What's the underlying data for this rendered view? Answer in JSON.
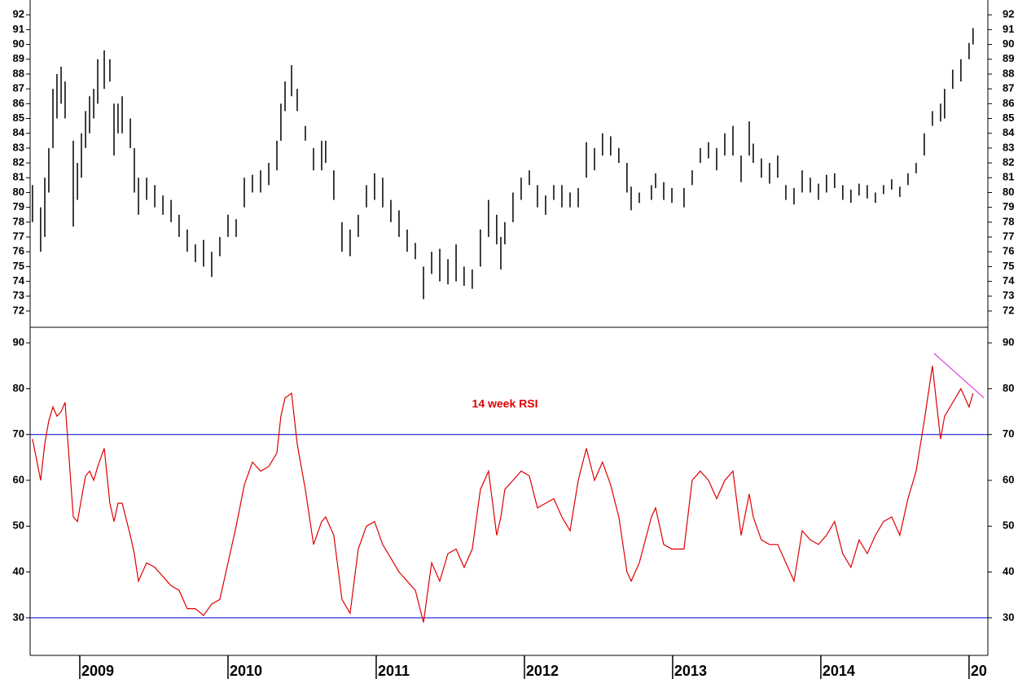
{
  "chart_data": [
    {
      "type": "hilo",
      "color": "#000000",
      "x": [
        2008.681,
        2008.736,
        2008.764,
        2008.791,
        2008.819,
        2008.846,
        2008.874,
        2008.901,
        2008.956,
        2008.984,
        2009.011,
        2009.039,
        2009.066,
        2009.094,
        2009.121,
        2009.165,
        2009.203,
        2009.231,
        2009.258,
        2009.286,
        2009.341,
        2009.368,
        2009.396,
        2009.451,
        2009.506,
        2009.561,
        2009.616,
        2009.67,
        2009.725,
        2009.78,
        2009.835,
        2009.89,
        2009.945,
        2010.0,
        2010.055,
        2010.11,
        2010.165,
        2010.22,
        2010.275,
        2010.33,
        2010.357,
        2010.385,
        2010.429,
        2010.467,
        2010.522,
        2010.577,
        2010.632,
        2010.659,
        2010.714,
        2010.769,
        2010.824,
        2010.879,
        2010.934,
        2010.989,
        2011.044,
        2011.099,
        2011.154,
        2011.209,
        2011.264,
        2011.319,
        2011.374,
        2011.429,
        2011.484,
        2011.539,
        2011.593,
        2011.648,
        2011.703,
        2011.758,
        2011.813,
        2011.841,
        2011.868,
        2011.923,
        2011.978,
        2012.033,
        2012.088,
        2012.143,
        2012.198,
        2012.253,
        2012.308,
        2012.363,
        2012.418,
        2012.473,
        2012.527,
        2012.582,
        2012.637,
        2012.692,
        2012.72,
        2012.775,
        2012.857,
        2012.885,
        2012.94,
        2012.995,
        2013.077,
        2013.132,
        2013.187,
        2013.242,
        2013.297,
        2013.352,
        2013.407,
        2013.462,
        2013.517,
        2013.544,
        2013.599,
        2013.654,
        2013.709,
        2013.764,
        2013.819,
        2013.874,
        2013.929,
        2013.984,
        2014.038,
        2014.093,
        2014.148,
        2014.203,
        2014.258,
        2014.313,
        2014.368,
        2014.423,
        2014.478,
        2014.533,
        2014.588,
        2014.643,
        2014.698,
        2014.753,
        2014.808,
        2014.835,
        2014.89,
        2014.945,
        2015.0,
        2015.027
      ],
      "high": [
        80.5,
        79,
        81,
        83,
        87,
        88,
        88.5,
        87.5,
        83.5,
        82,
        84,
        85.5,
        86.5,
        87,
        89,
        89.6,
        89,
        86,
        86,
        86.5,
        85,
        83,
        81,
        81,
        80.5,
        79.8,
        79.5,
        78.5,
        77.5,
        76.5,
        76.8,
        76,
        77,
        78.5,
        78.2,
        81,
        81.2,
        81.5,
        82,
        83.5,
        86,
        87.5,
        88.6,
        87,
        84.5,
        83,
        83.5,
        83.5,
        81.5,
        78,
        77.5,
        78.5,
        80.5,
        81.3,
        81,
        79.5,
        78.8,
        77.5,
        76.6,
        75,
        76,
        76.2,
        75.5,
        76.5,
        75,
        74.8,
        77.5,
        79.5,
        78.5,
        77,
        78,
        80,
        81,
        81.5,
        80.5,
        79.8,
        80.5,
        80.5,
        80,
        80.3,
        83.4,
        83,
        84,
        83.8,
        83,
        82,
        80.4,
        80,
        80.5,
        81.3,
        80.7,
        80.3,
        80.3,
        81.5,
        83,
        83.4,
        83,
        84,
        84.5,
        82.5,
        84.8,
        83.3,
        82.3,
        82,
        82.5,
        80.5,
        80.3,
        81.5,
        81,
        80.6,
        81.2,
        81.3,
        80.5,
        80.2,
        80.6,
        80.5,
        80,
        80.5,
        80.9,
        80.4,
        81.3,
        82,
        84,
        85.5,
        86,
        87,
        88.3,
        89,
        90.1,
        91.1
      ],
      "low": [
        78,
        76,
        77,
        80,
        83,
        85,
        86,
        85,
        77.7,
        79.5,
        81,
        83,
        84,
        85,
        86,
        87,
        87.5,
        82.5,
        84,
        84,
        83,
        80,
        78.5,
        79.5,
        79,
        78.5,
        78,
        77,
        76,
        75.3,
        75,
        74.3,
        75.7,
        77,
        77,
        79,
        80,
        80,
        80.5,
        81.5,
        83.5,
        85.5,
        86.5,
        85.5,
        83.5,
        81.5,
        81.5,
        82,
        79.5,
        76,
        75.7,
        77,
        79,
        79.5,
        79,
        78,
        77,
        76,
        75.5,
        72.8,
        74.5,
        74,
        73.8,
        74,
        73.7,
        73.5,
        75,
        77,
        76.5,
        74.8,
        76.5,
        78,
        79.5,
        80.5,
        79,
        78.5,
        79.5,
        79,
        79,
        79,
        81,
        81.5,
        82.5,
        82.5,
        82,
        80,
        78.8,
        79.3,
        79.5,
        80.3,
        79.5,
        79.3,
        79,
        80.5,
        82,
        82.3,
        81.5,
        82.5,
        82.5,
        80.7,
        82.5,
        82,
        81,
        80.6,
        81,
        79.5,
        79.2,
        80,
        80,
        79.5,
        80,
        80.3,
        79.5,
        79.3,
        79.8,
        79.6,
        79.3,
        79.9,
        80.2,
        79.7,
        80.5,
        81.3,
        82.5,
        84.5,
        84.8,
        85,
        87,
        87.5,
        89,
        90
      ],
      "xlim": [
        2008.665,
        2015.127
      ],
      "ylim": [
        70.9,
        93
      ],
      "yticks": [
        72,
        73,
        74,
        75,
        76,
        77,
        78,
        79,
        80,
        81,
        82,
        83,
        84,
        85,
        86,
        87,
        88,
        89,
        90,
        91,
        92
      ]
    },
    {
      "type": "line",
      "color": "#e00000",
      "annotation": "14 week RSI",
      "x": [
        2008.681,
        2008.736,
        2008.764,
        2008.791,
        2008.819,
        2008.846,
        2008.874,
        2008.901,
        2008.956,
        2008.984,
        2009.011,
        2009.039,
        2009.066,
        2009.094,
        2009.121,
        2009.165,
        2009.203,
        2009.231,
        2009.258,
        2009.286,
        2009.341,
        2009.368,
        2009.396,
        2009.451,
        2009.506,
        2009.561,
        2009.616,
        2009.67,
        2009.725,
        2009.78,
        2009.835,
        2009.89,
        2009.945,
        2010.0,
        2010.055,
        2010.11,
        2010.165,
        2010.22,
        2010.275,
        2010.33,
        2010.357,
        2010.385,
        2010.429,
        2010.467,
        2010.522,
        2010.577,
        2010.632,
        2010.659,
        2010.714,
        2010.769,
        2010.824,
        2010.879,
        2010.934,
        2010.989,
        2011.044,
        2011.099,
        2011.154,
        2011.209,
        2011.264,
        2011.319,
        2011.374,
        2011.429,
        2011.484,
        2011.539,
        2011.593,
        2011.648,
        2011.703,
        2011.758,
        2011.813,
        2011.841,
        2011.868,
        2011.923,
        2011.978,
        2012.033,
        2012.088,
        2012.143,
        2012.198,
        2012.253,
        2012.308,
        2012.363,
        2012.418,
        2012.473,
        2012.527,
        2012.582,
        2012.637,
        2012.692,
        2012.72,
        2012.775,
        2012.857,
        2012.885,
        2012.94,
        2012.995,
        2013.077,
        2013.132,
        2013.187,
        2013.242,
        2013.297,
        2013.352,
        2013.407,
        2013.462,
        2013.517,
        2013.544,
        2013.599,
        2013.654,
        2013.709,
        2013.764,
        2013.819,
        2013.874,
        2013.929,
        2013.984,
        2014.038,
        2014.093,
        2014.148,
        2014.203,
        2014.258,
        2014.313,
        2014.368,
        2014.423,
        2014.478,
        2014.533,
        2014.588,
        2014.643,
        2014.698,
        2014.753,
        2014.808,
        2014.835,
        2014.89,
        2014.945,
        2015.0,
        2015.027
      ],
      "values": [
        69,
        60,
        68,
        73,
        76,
        74,
        75,
        77,
        52,
        51,
        56,
        61,
        62,
        60,
        63,
        67,
        55,
        51,
        55,
        55,
        48,
        44,
        38,
        42,
        41,
        39,
        37,
        36,
        32,
        32,
        30.5,
        33,
        34,
        42,
        50,
        59,
        64,
        62,
        63,
        66,
        74,
        78,
        79,
        68,
        58,
        46,
        51,
        52,
        48,
        34,
        31,
        45,
        50,
        51,
        46,
        43,
        40,
        38,
        36,
        29,
        42,
        38,
        44,
        45,
        41,
        45,
        58,
        62,
        48,
        52,
        58,
        60,
        62,
        61,
        54,
        55,
        56,
        52,
        49,
        60,
        67,
        60,
        64,
        59,
        52,
        40,
        38,
        42,
        52,
        54,
        46,
        45,
        45,
        60,
        62,
        60,
        56,
        60,
        62,
        48,
        57,
        52,
        47,
        46,
        46,
        42,
        38,
        49,
        47,
        46,
        48,
        51,
        44,
        41,
        47,
        44,
        48,
        51,
        52,
        48,
        56,
        62,
        73,
        85,
        69,
        74,
        77,
        80,
        76,
        79
      ],
      "hlines": [
        70,
        30
      ],
      "hline_color": "#0000cc",
      "trendline": {
        "x": [
          2014.764,
          2015.1
        ],
        "y": [
          87.7,
          78.0
        ],
        "color": "#e040e0"
      },
      "xlim": [
        2008.665,
        2015.127
      ],
      "ylim": [
        21.8,
        93.4
      ],
      "yticks": [
        30,
        40,
        50,
        60,
        70,
        80,
        90
      ],
      "xticks": [
        2009,
        2010,
        2011,
        2012,
        2013,
        2014,
        {
          "value": 2015,
          "label": "20"
        }
      ]
    }
  ]
}
